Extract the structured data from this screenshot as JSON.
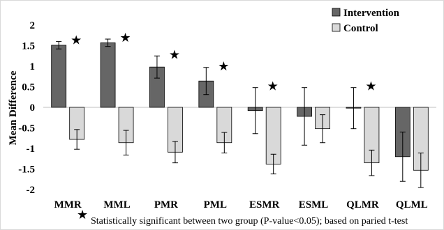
{
  "chart_data": {
    "type": "bar",
    "categories": [
      "MMR",
      "MML",
      "PMR",
      "PML",
      "ESMR",
      "ESML",
      "QLMR",
      "QLML"
    ],
    "ylabel": "Mean Difference",
    "ylim": [
      -2,
      2
    ],
    "yticks": [
      "2",
      "1.5",
      "1",
      "0.5",
      "0",
      "-0.5",
      "-1",
      "-1.5",
      "-2"
    ],
    "ytick_values": [
      2,
      1.5,
      1,
      0.5,
      0,
      -0.5,
      -1,
      -1.5,
      -2
    ],
    "grid": false,
    "legend_position": "top-right",
    "series": [
      {
        "name": "Intervention",
        "color": "#666666",
        "values": [
          1.51,
          1.57,
          0.98,
          0.64,
          -0.08,
          -0.22,
          -0.02,
          -1.2
        ],
        "error": [
          0.09,
          0.09,
          0.27,
          0.33,
          0.56,
          0.7,
          0.5,
          0.6
        ]
      },
      {
        "name": "Control",
        "color": "#d9d9d9",
        "values": [
          -0.78,
          -0.86,
          -1.09,
          -0.86,
          -1.38,
          -0.52,
          -1.35,
          -1.53
        ],
        "error": [
          0.24,
          0.3,
          0.26,
          0.25,
          0.24,
          0.34,
          0.31,
          0.42
        ]
      }
    ],
    "significant": [
      true,
      true,
      true,
      true,
      true,
      false,
      true,
      false
    ],
    "star_symbol": "★",
    "footnote": "Statistically significant between two group (P-value<0.05); based on paried t-test"
  }
}
